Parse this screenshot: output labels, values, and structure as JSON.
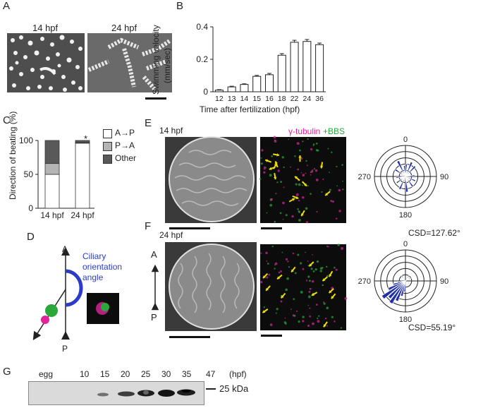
{
  "panels": {
    "A": {
      "label": "A",
      "left_caption": "14 hpf",
      "right_caption": "24 hpf"
    },
    "B": {
      "label": "B",
      "ylabel_line1": "Swimming velocity",
      "ylabel_line2": "(mm/sec)",
      "xlabel": "Time after fertilization (hpf)"
    },
    "C": {
      "label": "C",
      "ylabel": "Direction of beating (%)",
      "significance": "*",
      "legend": [
        "A→P",
        "P→A",
        "Other"
      ]
    },
    "D": {
      "label": "D",
      "arrow_top": "A",
      "arrow_bottom": "P",
      "angle_label_1": "Ciliary",
      "angle_label_2": "orientation",
      "angle_label_3": "angle"
    },
    "E": {
      "label": "E",
      "caption": "14 hpf",
      "stain_part1": "γ-tubulin",
      "stain_part2": "+BBS",
      "csd": "CSD=127.62°"
    },
    "F": {
      "label": "F",
      "caption": "24 hpf",
      "axis_top": "A",
      "axis_bottom": "P",
      "csd": "CSD=55.19°"
    },
    "G": {
      "label": "G",
      "lanes": [
        "egg",
        "10",
        "15",
        "20",
        "25",
        "30",
        "35",
        "47"
      ],
      "unit": "(hpf)",
      "marker": "25 kDa"
    }
  },
  "polar": {
    "tick_labels": [
      "0",
      "90",
      "180",
      "270"
    ]
  },
  "colors": {
    "bar_fill": "#ffffff",
    "ap": "#ffffff",
    "pa": "#b4b4b4",
    "other": "#595959",
    "rose": "#1e2fa8",
    "arrow_yellow": "#f0e000",
    "magenta": "#e0249c",
    "green": "#2aa83a"
  },
  "chart_data": [
    {
      "type": "bar",
      "categories": [
        "12",
        "13",
        "14",
        "15",
        "16",
        "18",
        "22",
        "24",
        "36"
      ],
      "values": [
        0.01,
        0.03,
        0.045,
        0.095,
        0.105,
        0.225,
        0.305,
        0.31,
        0.29
      ],
      "errors": [
        0.003,
        0.004,
        0.004,
        0.006,
        0.008,
        0.01,
        0.012,
        0.012,
        0.01
      ],
      "xlabel": "Time after fertilization (hpf)",
      "ylabel": "Swimming velocity (mm/sec)",
      "ylim": [
        0,
        0.4
      ],
      "yticks": [
        "0",
        "0.2",
        "0.4"
      ]
    },
    {
      "type": "bar",
      "stacked": true,
      "categories": [
        "14 hpf",
        "24 hpf"
      ],
      "series": [
        {
          "name": "A→P",
          "values": [
            50,
            96
          ]
        },
        {
          "name": "P→A",
          "values": [
            16,
            1
          ]
        },
        {
          "name": "Other",
          "values": [
            34,
            3
          ]
        }
      ],
      "ylabel": "Direction of beating (%)",
      "ylim": [
        0,
        100
      ],
      "yticks": [
        "0",
        "50",
        "100"
      ]
    }
  ]
}
